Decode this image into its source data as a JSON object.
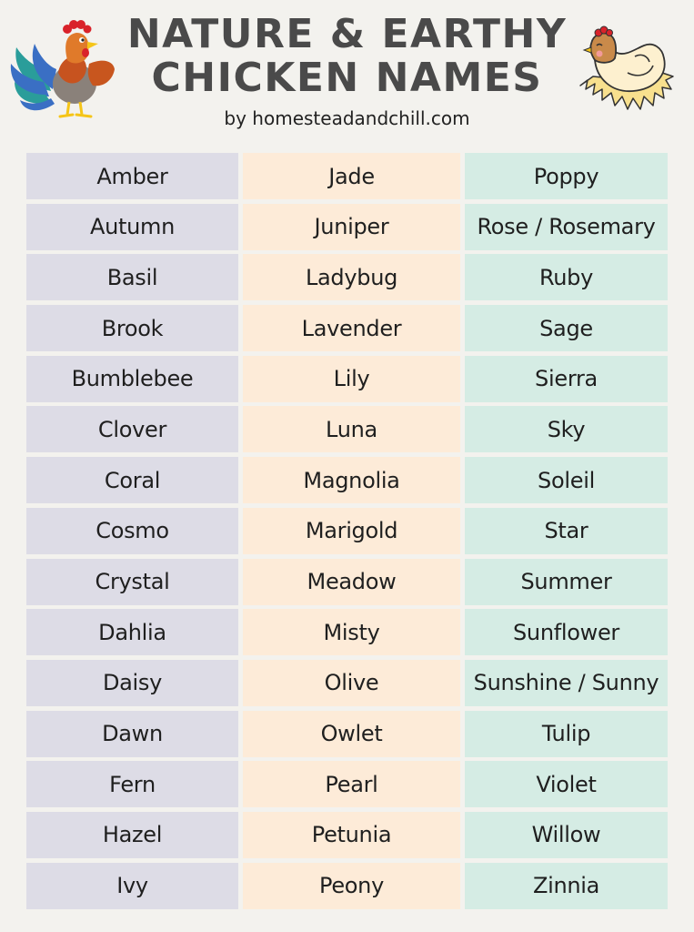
{
  "header": {
    "title_line1": "NATURE & EARTHY",
    "title_line2": "CHICKEN NAMES",
    "subtitle": "by homesteadandchill.com",
    "left_illustration": "rooster-icon",
    "right_illustration": "hen-icon"
  },
  "colors": {
    "background": "#f3f2ee",
    "title": "#4a4a4a",
    "column1": "#dddce6",
    "column2": "#fdebd8",
    "column3": "#d5ece4"
  },
  "names": {
    "column1": [
      "Amber",
      "Autumn",
      "Basil",
      "Brook",
      "Bumblebee",
      "Clover",
      "Coral",
      "Cosmo",
      "Crystal",
      "Dahlia",
      "Daisy",
      "Dawn",
      "Fern",
      "Hazel",
      "Ivy"
    ],
    "column2": [
      "Jade",
      "Juniper",
      "Ladybug",
      "Lavender",
      "Lily",
      "Luna",
      "Magnolia",
      "Marigold",
      "Meadow",
      "Misty",
      "Olive",
      "Owlet",
      "Pearl",
      "Petunia",
      "Peony"
    ],
    "column3": [
      "Poppy",
      "Rose / Rosemary",
      "Ruby",
      "Sage",
      "Sierra",
      "Sky",
      "Soleil",
      "Star",
      "Summer",
      "Sunflower",
      "Sunshine / Sunny",
      "Tulip",
      "Violet",
      "Willow",
      "Zinnia"
    ]
  }
}
